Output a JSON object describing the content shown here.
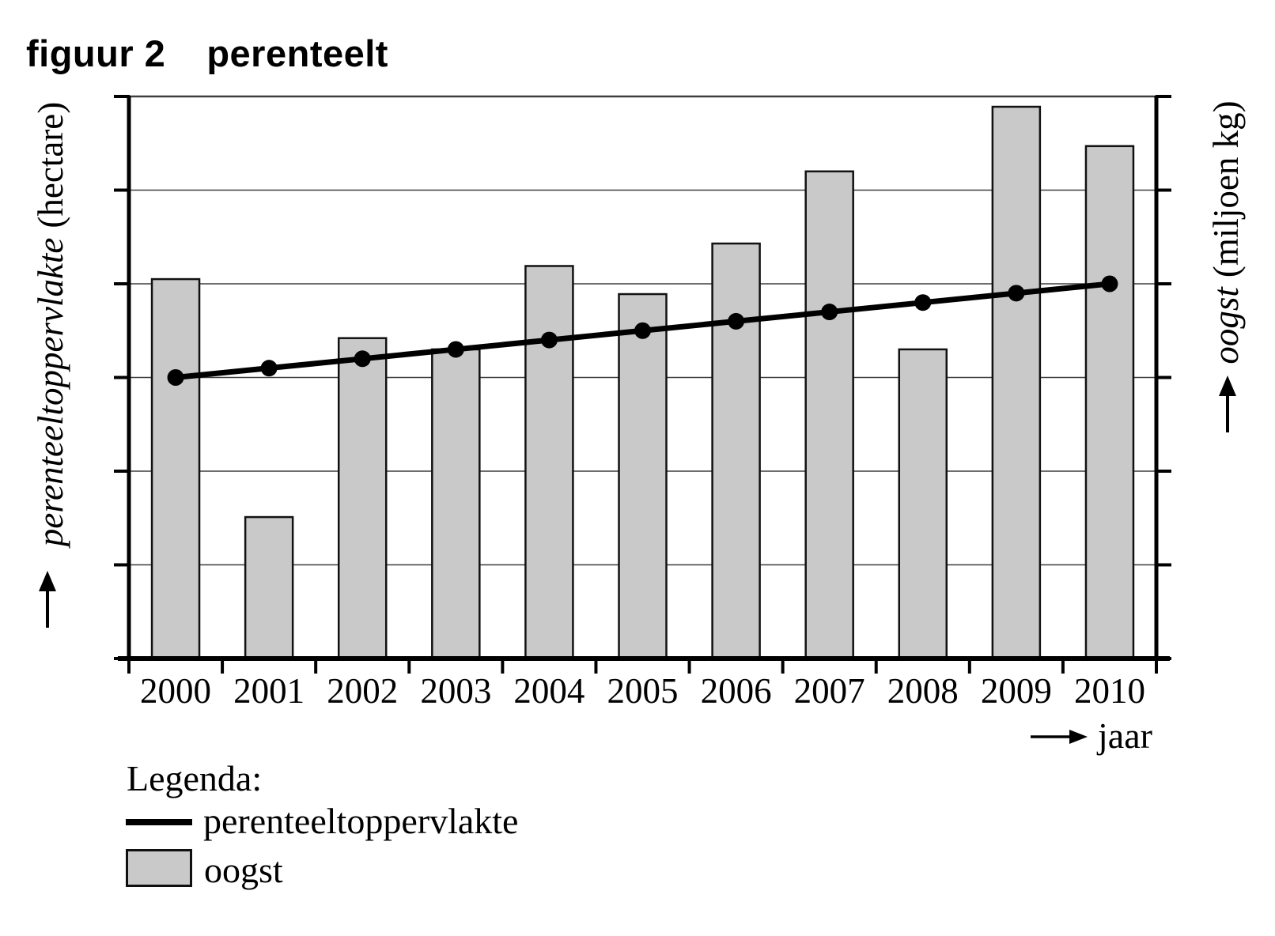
{
  "figure": {
    "label": "figuur 2",
    "title": "perenteelt"
  },
  "axes": {
    "left": {
      "name": "perenteeltoppervlakte",
      "unit": "(hectare)"
    },
    "right": {
      "name": "oogst",
      "unit": "(miljoen kg)"
    },
    "x": {
      "label": "jaar"
    }
  },
  "legend": {
    "heading": "Legenda:",
    "items": [
      {
        "swatch": "line",
        "label": "perenteeltoppervlakte"
      },
      {
        "swatch": "box",
        "label": "oogst"
      }
    ]
  },
  "colors": {
    "background": "#ffffff",
    "bar_fill": "#c9c9c9",
    "bar_stroke": "#111111",
    "line": "#000000",
    "axis": "#000000",
    "gridline": "#3f3f3f",
    "text": "#000000"
  },
  "chart_data": {
    "type": "bar",
    "title": "figuur 2  perenteelt",
    "x": [
      "2000",
      "2001",
      "2002",
      "2003",
      "2004",
      "2005",
      "2006",
      "2007",
      "2008",
      "2009",
      "2010"
    ],
    "series": [
      {
        "name": "oogst",
        "type": "bar",
        "axis": "right",
        "unit": "miljoen kg",
        "values": [
          4.05,
          1.51,
          3.42,
          3.3,
          4.19,
          3.89,
          4.43,
          5.2,
          3.3,
          5.89,
          5.47
        ]
      },
      {
        "name": "perenteeltoppervlakte",
        "type": "line",
        "axis": "left",
        "unit": "hectare",
        "values": [
          3.0,
          3.1,
          3.2,
          3.3,
          3.4,
          3.5,
          3.6,
          3.7,
          3.8,
          3.9,
          4.0
        ]
      }
    ],
    "xlabel": "jaar",
    "ylabel_left": "perenteeltoppervlakte (hectare)",
    "ylabel_right": "oogst (miljoen kg)",
    "ylim": [
      0,
      6
    ],
    "value_scale_note": "axes show no numeric tick labels; values are expressed in horizontal-gridline intervals (6 intervals between the x-axis and the top border; the line sits exactly on the 3rd gridline in 2000 and the 4th in 2010)",
    "grid": "horizontal gridlines only, 5 interior lines plus top border",
    "legend_position": "below chart, bottom-left"
  }
}
